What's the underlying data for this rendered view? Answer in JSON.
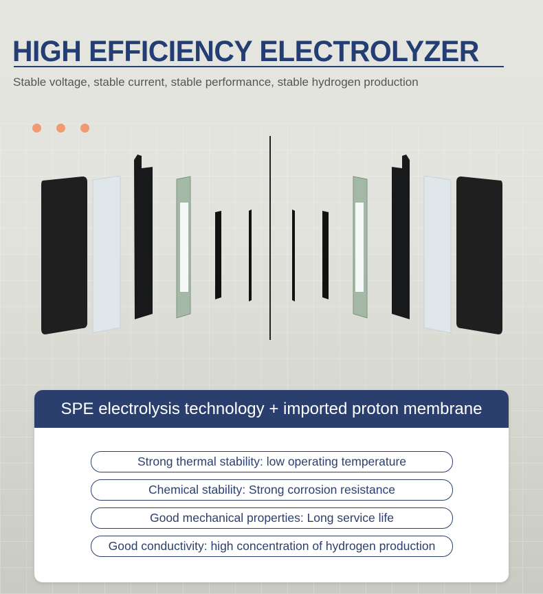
{
  "header": {
    "title": "HIGH EFFICIENCY ELECTROLYZER",
    "subtitle": "Stable voltage, stable current, stable performance, stable hydrogen production"
  },
  "decoration": {
    "dot_color": "#f09a74",
    "dot_count": 3
  },
  "card": {
    "heading": "SPE electrolysis technology + imported proton membrane",
    "features": [
      "Strong thermal stability: low operating temperature",
      "Chemical stability: Strong corrosion resistance",
      "Good mechanical properties: Long service life",
      "Good conductivity: high concentration of hydrogen production"
    ]
  },
  "colors": {
    "primary": "#243d73",
    "card_header": "#2b3f6e",
    "accent": "#f09a74"
  }
}
